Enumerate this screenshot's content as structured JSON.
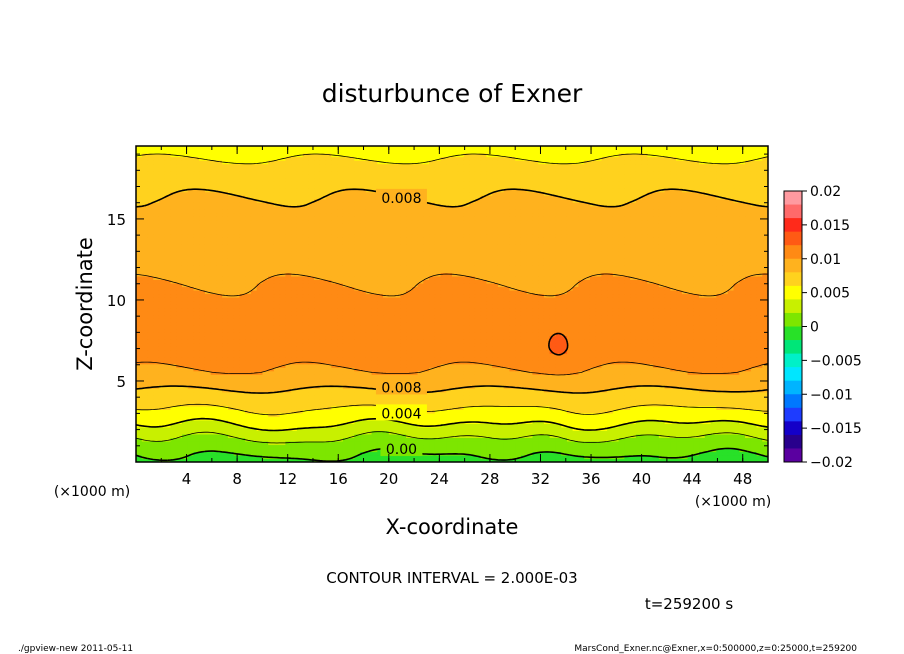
{
  "chart_data": {
    "type": "heatmap",
    "title": "disturbunce of Exner",
    "xlabel": "X-coordinate",
    "ylabel": "Z-coordinate",
    "x_unit_left": "(×1000 m)",
    "x_unit_right": "(×1000 m)",
    "xlim": [
      0,
      50
    ],
    "ylim": [
      0,
      19.5
    ],
    "x_ticks": [
      "4",
      "8",
      "12",
      "16",
      "20",
      "24",
      "28",
      "32",
      "36",
      "40",
      "44",
      "48"
    ],
    "y_ticks": [
      "5",
      "10",
      "15"
    ],
    "colorbar": {
      "ticks": [
        "0.02",
        "0.015",
        "0.01",
        "0.005",
        "0",
        "−0.005",
        "−0.01",
        "−0.015",
        "−0.02"
      ],
      "min": -0.02,
      "max": 0.02,
      "levels": [
        {
          "lo": 0.018,
          "hi": 0.02,
          "color": "#ff9aa0"
        },
        {
          "lo": 0.016,
          "hi": 0.018,
          "color": "#ff6a6a"
        },
        {
          "lo": 0.014,
          "hi": 0.016,
          "color": "#ff2a1a"
        },
        {
          "lo": 0.012,
          "hi": 0.014,
          "color": "#ff5a14"
        },
        {
          "lo": 0.01,
          "hi": 0.012,
          "color": "#ff8a14"
        },
        {
          "lo": 0.008,
          "hi": 0.01,
          "color": "#ffb21e"
        },
        {
          "lo": 0.006,
          "hi": 0.008,
          "color": "#ffd21e"
        },
        {
          "lo": 0.004,
          "hi": 0.006,
          "color": "#ffff00"
        },
        {
          "lo": 0.002,
          "hi": 0.004,
          "color": "#c8f000"
        },
        {
          "lo": 0.0,
          "hi": 0.002,
          "color": "#7de600"
        },
        {
          "lo": -0.002,
          "hi": 0.0,
          "color": "#28e128"
        },
        {
          "lo": -0.004,
          "hi": -0.002,
          "color": "#00e678"
        },
        {
          "lo": -0.006,
          "hi": -0.004,
          "color": "#00f0c8"
        },
        {
          "lo": -0.008,
          "hi": -0.006,
          "color": "#00e6ff"
        },
        {
          "lo": -0.01,
          "hi": -0.008,
          "color": "#00b4ff"
        },
        {
          "lo": -0.012,
          "hi": -0.01,
          "color": "#0078ff"
        },
        {
          "lo": -0.014,
          "hi": -0.012,
          "color": "#1e3cff"
        },
        {
          "lo": -0.016,
          "hi": -0.014,
          "color": "#1400c8"
        },
        {
          "lo": -0.018,
          "hi": -0.016,
          "color": "#28008c"
        },
        {
          "lo": -0.02,
          "hi": -0.018,
          "color": "#5a00a0"
        }
      ]
    },
    "profile": {
      "z": [
        0,
        0.5,
        1.0,
        1.5,
        2.0,
        2.5,
        3.0,
        3.5,
        4.0,
        4.5,
        5.0,
        5.5,
        6.0,
        7.0,
        8.0,
        9.0,
        10.0,
        11.0,
        12.0,
        13.0,
        14.0,
        15.0,
        16.0,
        17.0,
        18.0,
        19.0,
        19.5
      ],
      "value": [
        -0.0005,
        0.0,
        0.0008,
        0.0018,
        0.003,
        0.0042,
        0.0053,
        0.0063,
        0.0072,
        0.008,
        0.0088,
        0.0098,
        0.0102,
        0.0108,
        0.011,
        0.0108,
        0.0104,
        0.01,
        0.0095,
        0.0092,
        0.0089,
        0.0086,
        0.0082,
        0.0076,
        0.0067,
        0.0057,
        0.0053
      ]
    },
    "contour_labels": [
      "0.008",
      "0.008",
      "0.004",
      "0.00"
    ],
    "contour_interval": "CONTOUR INTERVAL = 2.000E-03",
    "time_label": "t=259200 s"
  },
  "footer": {
    "left": "./gpview-new  2011-05-11",
    "right": "MarsCond_Exner.nc@Exner,x=0:500000,z=0:25000,t=259200"
  }
}
